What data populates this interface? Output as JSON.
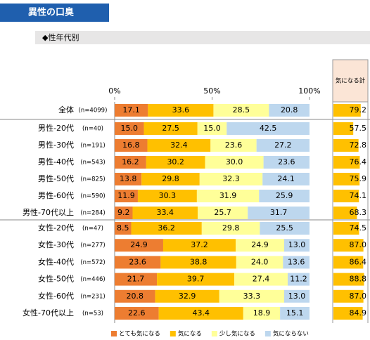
{
  "chart_data": {
    "type": "bar",
    "orientation": "horizontal",
    "stacked": true,
    "title": "異性の口臭",
    "subtitle": "◆性年代別",
    "categories": [
      "全体",
      "男性-20代",
      "男性-30代",
      "男性-40代",
      "男性-50代",
      "男性-60代",
      "男性-70代以上",
      "女性-20代",
      "女性-30代",
      "女性-40代",
      "女性-50代",
      "女性-60代",
      "女性-70代以上"
    ],
    "sample_sizes": [
      "(n=4099)",
      "(n=40)",
      "(n=191)",
      "(n=543)",
      "(n=825)",
      "(n=590)",
      "(n=284)",
      "(n=47)",
      "(n=277)",
      "(n=572)",
      "(n=446)",
      "(n=231)",
      "(n=53)"
    ],
    "series": [
      {
        "name": "とても気になる",
        "color": "#ed7d31",
        "values": [
          17.1,
          15.0,
          16.8,
          16.2,
          13.8,
          11.9,
          9.2,
          8.5,
          24.9,
          23.6,
          21.7,
          20.8,
          22.6
        ],
        "value_labels": [
          "17.1",
          "15.0",
          "16.8",
          "16.2",
          "13.8",
          "11.9",
          "9.2",
          "8.5",
          "24.9",
          "23.6",
          "21.7",
          "20.8",
          "22.6"
        ]
      },
      {
        "name": "気になる",
        "color": "#ffc000",
        "values": [
          33.6,
          27.5,
          32.4,
          30.2,
          29.8,
          30.3,
          33.4,
          36.2,
          37.2,
          38.8,
          39.7,
          32.9,
          43.4
        ],
        "value_labels": [
          "33.6",
          "27.5",
          "32.4",
          "30.2",
          "29.8",
          "30.3",
          "33.4",
          "36.2",
          "37.2",
          "38.8",
          "39.7",
          "32.9",
          "43.4"
        ]
      },
      {
        "name": "少し気になる",
        "color": "#ffff99",
        "values": [
          28.5,
          15.0,
          23.6,
          30.0,
          32.3,
          31.9,
          25.7,
          29.8,
          24.9,
          24.0,
          27.4,
          33.3,
          18.9
        ],
        "value_labels": [
          "28.5",
          "15.0",
          "23.6",
          "30.0",
          "32.3",
          "31.9",
          "25.7",
          "29.8",
          "24.9",
          "24.0",
          "27.4",
          "33.3",
          "18.9"
        ]
      },
      {
        "name": "気にならない",
        "color": "#bdd7ee",
        "values": [
          20.8,
          42.5,
          27.2,
          23.6,
          24.1,
          25.9,
          31.7,
          25.5,
          13.0,
          13.6,
          11.2,
          13.0,
          15.1
        ],
        "value_labels": [
          "20.8",
          "42.5",
          "27.2",
          "23.6",
          "24.1",
          "25.9",
          "31.7",
          "25.5",
          "13.0",
          "13.6",
          "11.2",
          "13.0",
          "15.1"
        ]
      }
    ],
    "total": {
      "name": "気になる計",
      "color": "#ffc000",
      "values": [
        79.2,
        57.5,
        72.8,
        76.4,
        75.9,
        74.1,
        68.3,
        74.5,
        87.0,
        86.4,
        88.8,
        87.0,
        84.9
      ],
      "value_labels": [
        "79.2",
        "57.5",
        "72.8",
        "76.4",
        "75.9",
        "74.1",
        "68.3",
        "74.5",
        "87.0",
        "86.4",
        "88.8",
        "87.0",
        "84.9"
      ]
    },
    "xlim": [
      0,
      100
    ],
    "xticks": [
      {
        "value": 0,
        "label": "0%"
      },
      {
        "value": 50,
        "label": "50%"
      },
      {
        "value": 100,
        "label": "100%"
      }
    ]
  }
}
